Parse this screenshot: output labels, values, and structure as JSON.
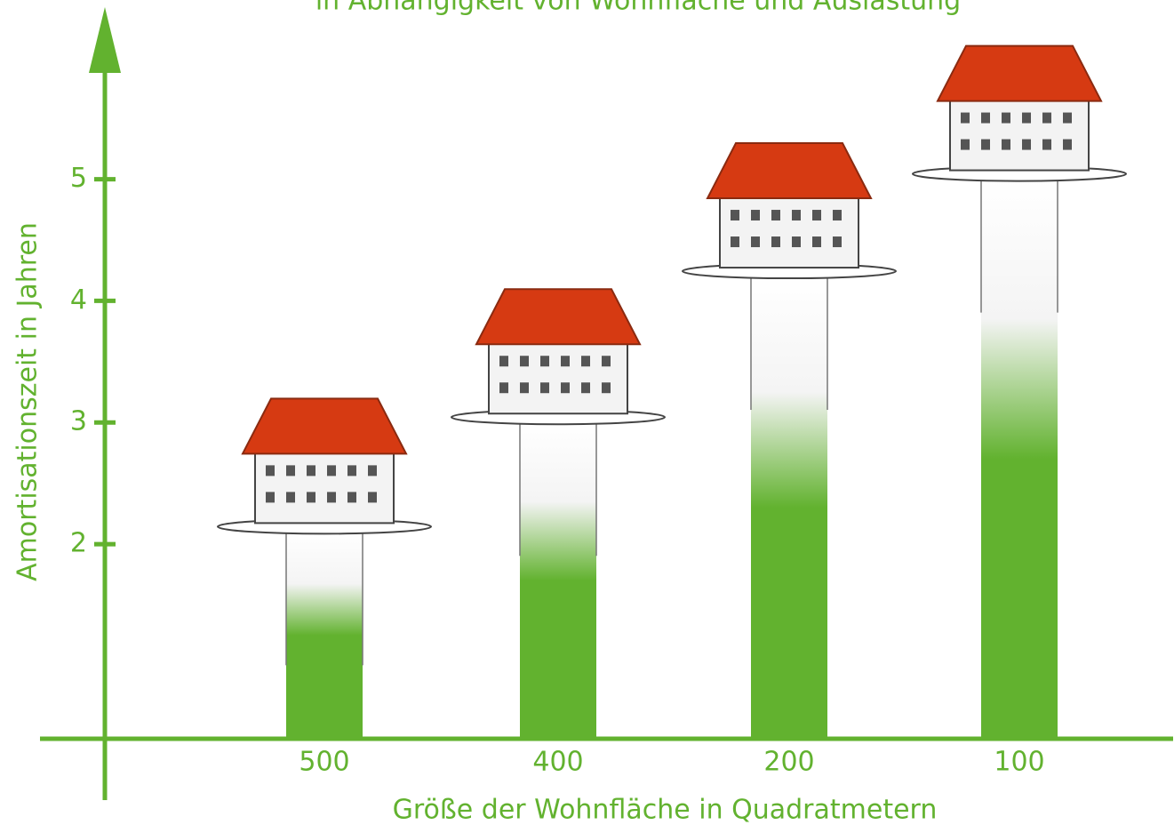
{
  "chart_data": {
    "type": "bar",
    "title": "in Abhängigkeit von Wohnfläche und Auslastung",
    "x_label": "Größe der Wohnfläche in Quadratmetern",
    "y_label": "Amortisationszeit in Jahren",
    "categories": [
      "500",
      "400",
      "200",
      "100"
    ],
    "values": [
      2.1,
      3.0,
      4.2,
      5.0
    ],
    "color": "#62b22f",
    "ylim": [
      0.4,
      6.4
    ],
    "yticks": [
      2,
      3,
      4,
      5
    ]
  }
}
